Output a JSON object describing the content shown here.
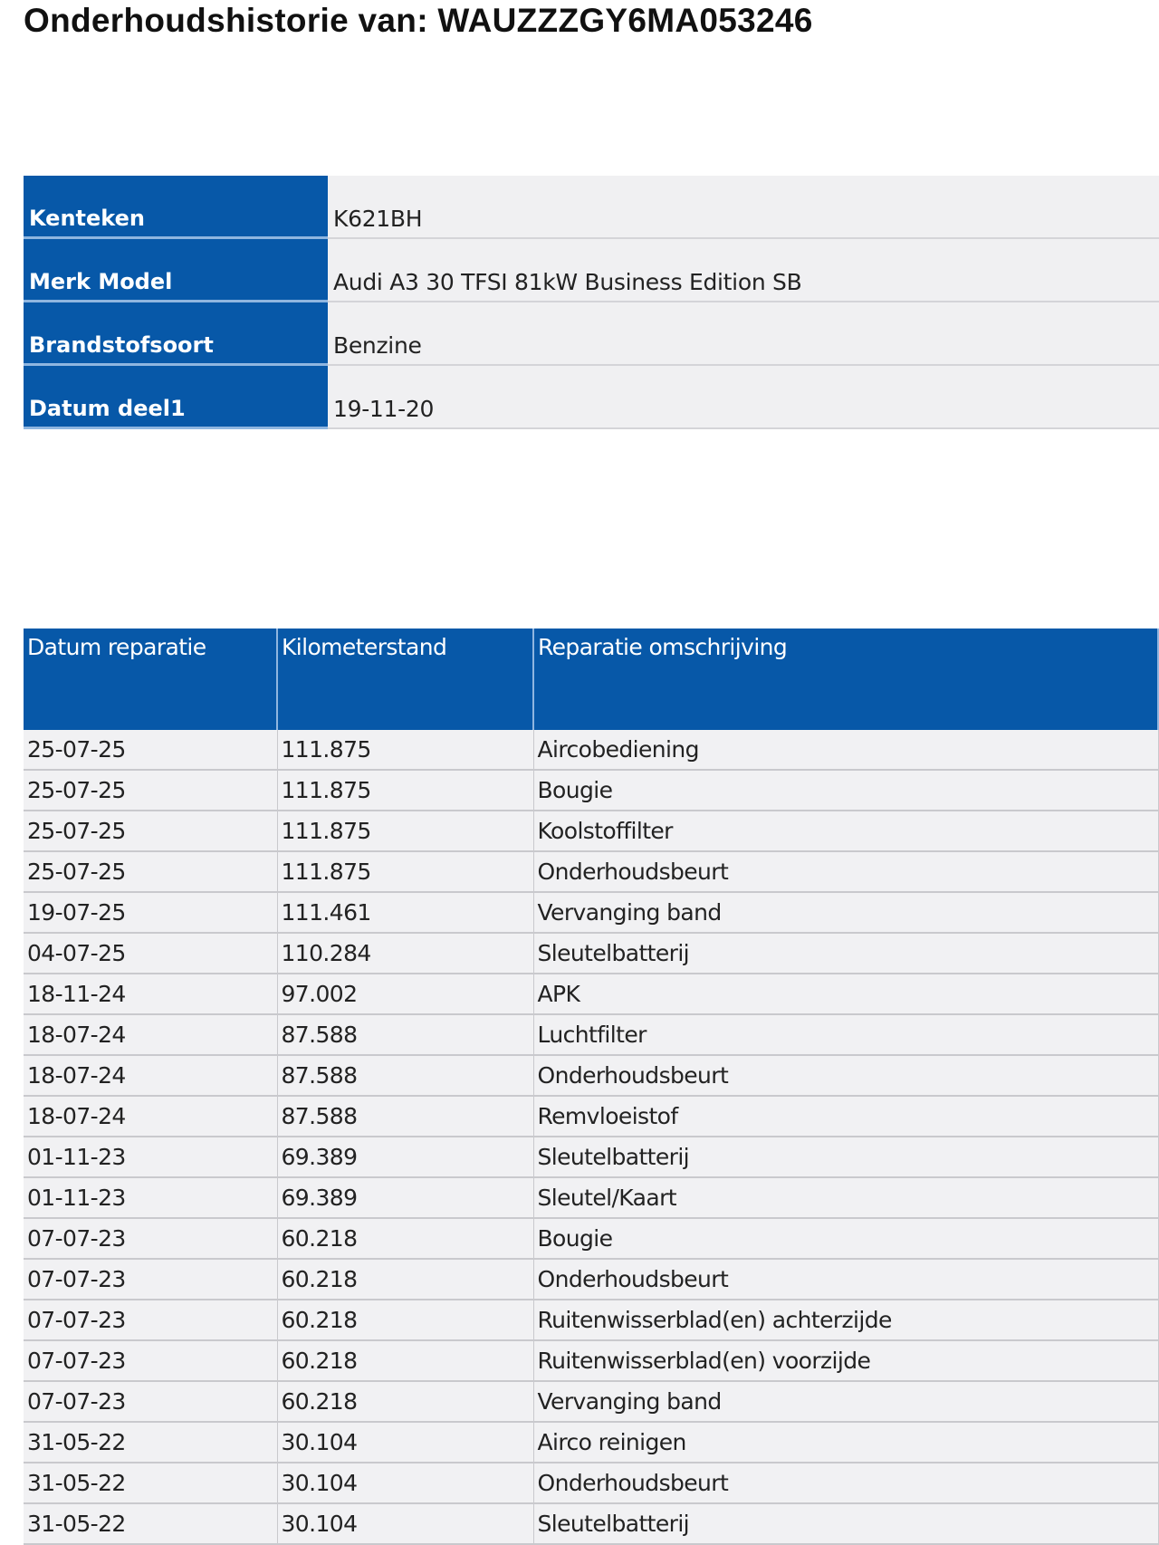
{
  "title": "Onderhoudshistorie van: WAUZZZGY6MA053246",
  "vehicle": [
    {
      "label": "Kenteken",
      "value": "K621BH"
    },
    {
      "label": "Merk Model",
      "value": "Audi A3 30 TFSI 81kW Business Edition SB"
    },
    {
      "label": "Brandstofsoort",
      "value": "Benzine"
    },
    {
      "label": "Datum deel1",
      "value": "19-11-20"
    }
  ],
  "history": {
    "headers": [
      "Datum reparatie",
      "Kilometerstand",
      "Reparatie omschrijving"
    ],
    "rows": [
      [
        "25-07-25",
        "111.875",
        "Aircobediening"
      ],
      [
        "25-07-25",
        "111.875",
        "Bougie"
      ],
      [
        "25-07-25",
        "111.875",
        "Koolstoffilter"
      ],
      [
        "25-07-25",
        "111.875",
        "Onderhoudsbeurt"
      ],
      [
        "19-07-25",
        "111.461",
        "Vervanging band"
      ],
      [
        "04-07-25",
        "110.284",
        "Sleutelbatterij"
      ],
      [
        "18-11-24",
        "97.002",
        "APK"
      ],
      [
        "18-07-24",
        "87.588",
        "Luchtfilter"
      ],
      [
        "18-07-24",
        "87.588",
        "Onderhoudsbeurt"
      ],
      [
        "18-07-24",
        "87.588",
        "Remvloeistof"
      ],
      [
        "01-11-23",
        "69.389",
        "Sleutelbatterij"
      ],
      [
        "01-11-23",
        "69.389",
        "Sleutel/Kaart"
      ],
      [
        "07-07-23",
        "60.218",
        "Bougie"
      ],
      [
        "07-07-23",
        "60.218",
        "Onderhoudsbeurt"
      ],
      [
        "07-07-23",
        "60.218",
        "Ruitenwisserblad(en) achterzijde"
      ],
      [
        "07-07-23",
        "60.218",
        "Ruitenwisserblad(en) voorzijde"
      ],
      [
        "07-07-23",
        "60.218",
        "Vervanging band"
      ],
      [
        "31-05-22",
        "30.104",
        "Airco reinigen"
      ],
      [
        "31-05-22",
        "30.104",
        "Onderhoudsbeurt"
      ],
      [
        "31-05-22",
        "30.104",
        "Sleutelbatterij"
      ]
    ]
  },
  "colors": {
    "header_blue": "#0758a8",
    "row_bg": "#f1f1f3"
  }
}
